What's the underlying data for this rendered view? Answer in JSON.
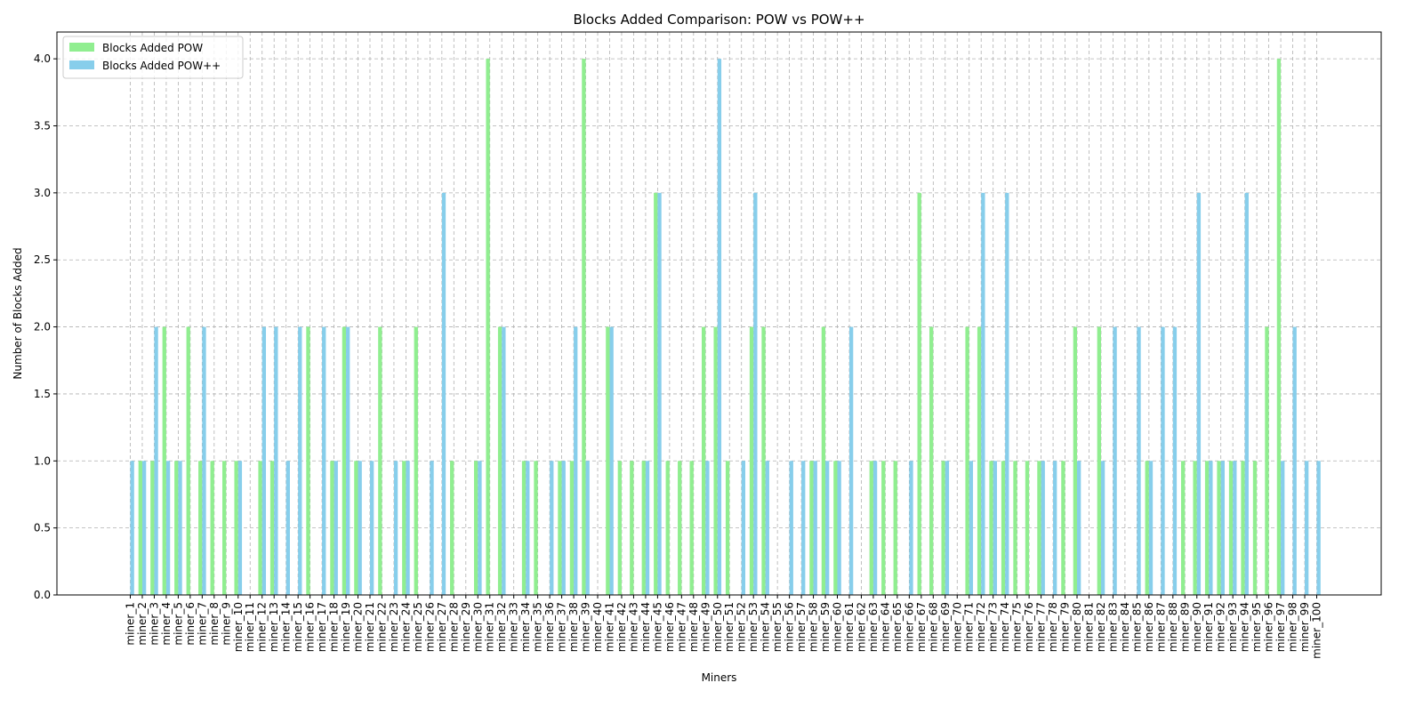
{
  "chart_data": {
    "type": "bar",
    "title": "Blocks Added Comparison: POW vs POW++",
    "xlabel": "Miners",
    "ylabel": "Number of Blocks Added",
    "ylim": [
      0,
      4.2
    ],
    "yticks": [
      "0.0",
      "0.5",
      "1.0",
      "1.5",
      "2.0",
      "2.5",
      "3.0",
      "3.5",
      "4.0"
    ],
    "grid": true,
    "legend_position": "top-left",
    "categories": [
      "miner_1",
      "miner_2",
      "miner_3",
      "miner_4",
      "miner_5",
      "miner_6",
      "miner_7",
      "miner_8",
      "miner_9",
      "miner_10",
      "miner_11",
      "miner_12",
      "miner_13",
      "miner_14",
      "miner_15",
      "miner_16",
      "miner_17",
      "miner_18",
      "miner_19",
      "miner_20",
      "miner_21",
      "miner_22",
      "miner_23",
      "miner_24",
      "miner_25",
      "miner_26",
      "miner_27",
      "miner_28",
      "miner_29",
      "miner_30",
      "miner_31",
      "miner_32",
      "miner_33",
      "miner_34",
      "miner_35",
      "miner_36",
      "miner_37",
      "miner_38",
      "miner_39",
      "miner_40",
      "miner_41",
      "miner_42",
      "miner_43",
      "miner_44",
      "miner_45",
      "miner_46",
      "miner_47",
      "miner_48",
      "miner_49",
      "miner_50",
      "miner_51",
      "miner_52",
      "miner_53",
      "miner_54",
      "miner_55",
      "miner_56",
      "miner_57",
      "miner_58",
      "miner_59",
      "miner_60",
      "miner_61",
      "miner_62",
      "miner_63",
      "miner_64",
      "miner_65",
      "miner_66",
      "miner_67",
      "miner_68",
      "miner_69",
      "miner_70",
      "miner_71",
      "miner_72",
      "miner_73",
      "miner_74",
      "miner_75",
      "miner_76",
      "miner_77",
      "miner_78",
      "miner_79",
      "miner_80",
      "miner_81",
      "miner_82",
      "miner_83",
      "miner_84",
      "miner_85",
      "miner_86",
      "miner_87",
      "miner_88",
      "miner_89",
      "miner_90",
      "miner_91",
      "miner_92",
      "miner_93",
      "miner_94",
      "miner_95",
      "miner_96",
      "miner_97",
      "miner_98",
      "miner_99",
      "miner_100"
    ],
    "series": [
      {
        "name": "Blocks Added POW",
        "color": "#90ee90",
        "values": [
          0,
          1,
          1,
          2,
          1,
          2,
          1,
          1,
          1,
          1,
          0,
          1,
          1,
          0,
          0,
          2,
          0,
          1,
          2,
          1,
          0,
          2,
          0,
          1,
          2,
          0,
          0,
          1,
          0,
          1,
          4,
          2,
          0,
          1,
          1,
          0,
          1,
          1,
          4,
          0,
          2,
          1,
          1,
          1,
          3,
          1,
          1,
          1,
          2,
          2,
          1,
          0,
          2,
          2,
          0,
          0,
          0,
          1,
          2,
          1,
          0,
          0,
          1,
          1,
          1,
          0,
          3,
          2,
          1,
          0,
          2,
          2,
          1,
          1,
          1,
          1,
          1,
          0,
          1,
          2,
          0,
          2,
          0,
          0,
          0,
          1,
          0,
          0,
          1,
          1,
          1,
          1,
          1,
          1,
          1,
          2,
          4,
          0,
          0,
          0
        ]
      },
      {
        "name": "Blocks Added POW++",
        "color": "#87ceeb",
        "values": [
          1,
          1,
          2,
          1,
          1,
          0,
          2,
          0,
          0,
          1,
          0,
          2,
          2,
          1,
          2,
          0,
          2,
          1,
          2,
          1,
          1,
          0,
          1,
          1,
          0,
          1,
          3,
          0,
          0,
          1,
          0,
          2,
          0,
          1,
          0,
          1,
          1,
          2,
          1,
          0,
          2,
          0,
          0,
          1,
          3,
          0,
          0,
          0,
          1,
          4,
          0,
          1,
          3,
          1,
          0,
          1,
          1,
          1,
          1,
          1,
          2,
          0,
          1,
          0,
          0,
          1,
          0,
          0,
          1,
          0,
          1,
          3,
          1,
          3,
          0,
          0,
          1,
          1,
          0,
          1,
          0,
          1,
          2,
          0,
          2,
          1,
          2,
          2,
          0,
          3,
          1,
          1,
          1,
          3,
          0,
          0,
          1,
          2,
          1,
          1
        ]
      }
    ]
  }
}
